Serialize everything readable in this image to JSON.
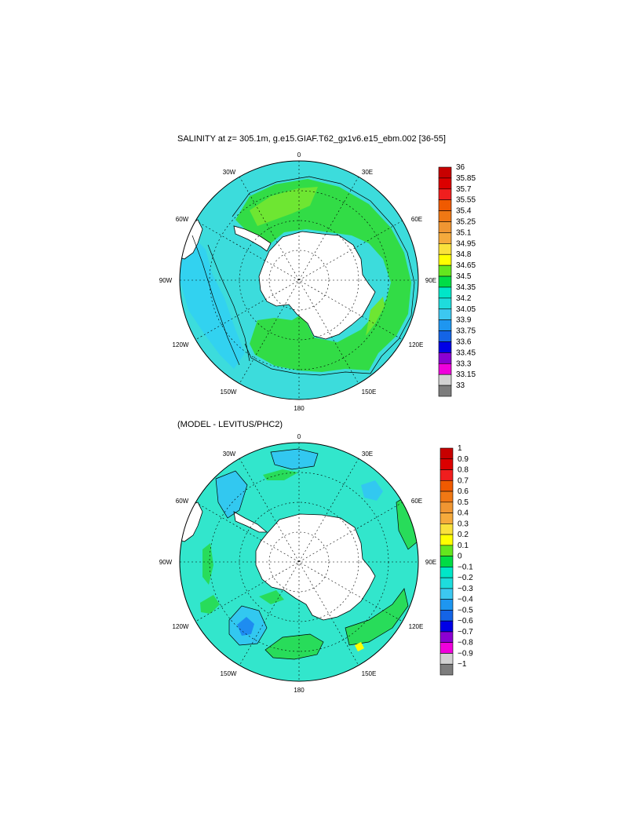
{
  "panels": [
    {
      "title": "SALINITY at z= 305.1m, g.e15.GIAF.T62_gx1v6.e15_ebm.002 [36-55]",
      "longitude_labels": [
        "0",
        "30E",
        "60E",
        "90E",
        "120E",
        "150E",
        "180",
        "150W",
        "120W",
        "90W",
        "60W",
        "30W"
      ],
      "colorbar": {
        "levels": [
          "36",
          "35.85",
          "35.7",
          "35.55",
          "35.4",
          "35.25",
          "35.1",
          "34.95",
          "34.8",
          "34.65",
          "34.5",
          "34.35",
          "34.2",
          "34.05",
          "33.9",
          "33.75",
          "33.6",
          "33.45",
          "33.3",
          "33.15",
          "33"
        ],
        "colors": [
          "#c80000",
          "#dc0000",
          "#f01e1e",
          "#f05a00",
          "#f07814",
          "#f09632",
          "#f5aa3c",
          "#fae13c",
          "#ffff00",
          "#64e61e",
          "#00dc46",
          "#00e6c8",
          "#1edcdc",
          "#3cc8f0",
          "#1e96f0",
          "#1464e6",
          "#0000e6",
          "#8c00d2",
          "#f000dc",
          "#d2d2d2",
          "#7d7d7d"
        ]
      }
    },
    {
      "title": "(MODEL - LEVITUS/PHC2)",
      "longitude_labels": [
        "0",
        "30E",
        "60E",
        "90E",
        "120E",
        "150E",
        "180",
        "150W",
        "120W",
        "90W",
        "60W",
        "30W"
      ],
      "colorbar": {
        "levels": [
          "1",
          "0.9",
          "0.8",
          "0.7",
          "0.6",
          "0.5",
          "0.4",
          "0.3",
          "0.2",
          "0.1",
          "0",
          "−0.1",
          "−0.2",
          "−0.3",
          "−0.4",
          "−0.5",
          "−0.6",
          "−0.7",
          "−0.8",
          "−0.9",
          "−1"
        ],
        "colors": [
          "#c80000",
          "#dc0000",
          "#f01e1e",
          "#f05a00",
          "#f07814",
          "#f09632",
          "#f5aa3c",
          "#fae13c",
          "#ffff00",
          "#64e61e",
          "#00dc46",
          "#00e6c8",
          "#1edcdc",
          "#3cc8f0",
          "#1e96f0",
          "#1464e6",
          "#0000e6",
          "#8c00d2",
          "#f000dc",
          "#d2d2d2",
          "#7d7d7d"
        ]
      }
    }
  ],
  "map_colors": {
    "ocean_base_top": "#3cdcdc",
    "ocean_light_top": "#32d2f0",
    "band_top": "#32dc46",
    "band_top_alt": "#6ee632",
    "ocean_base_bottom": "#32e6cc",
    "patch_green": "#28dc5a",
    "patch_blue": "#32c8f0",
    "patch_deep": "#1e8cf0",
    "land": "#ffffff"
  }
}
